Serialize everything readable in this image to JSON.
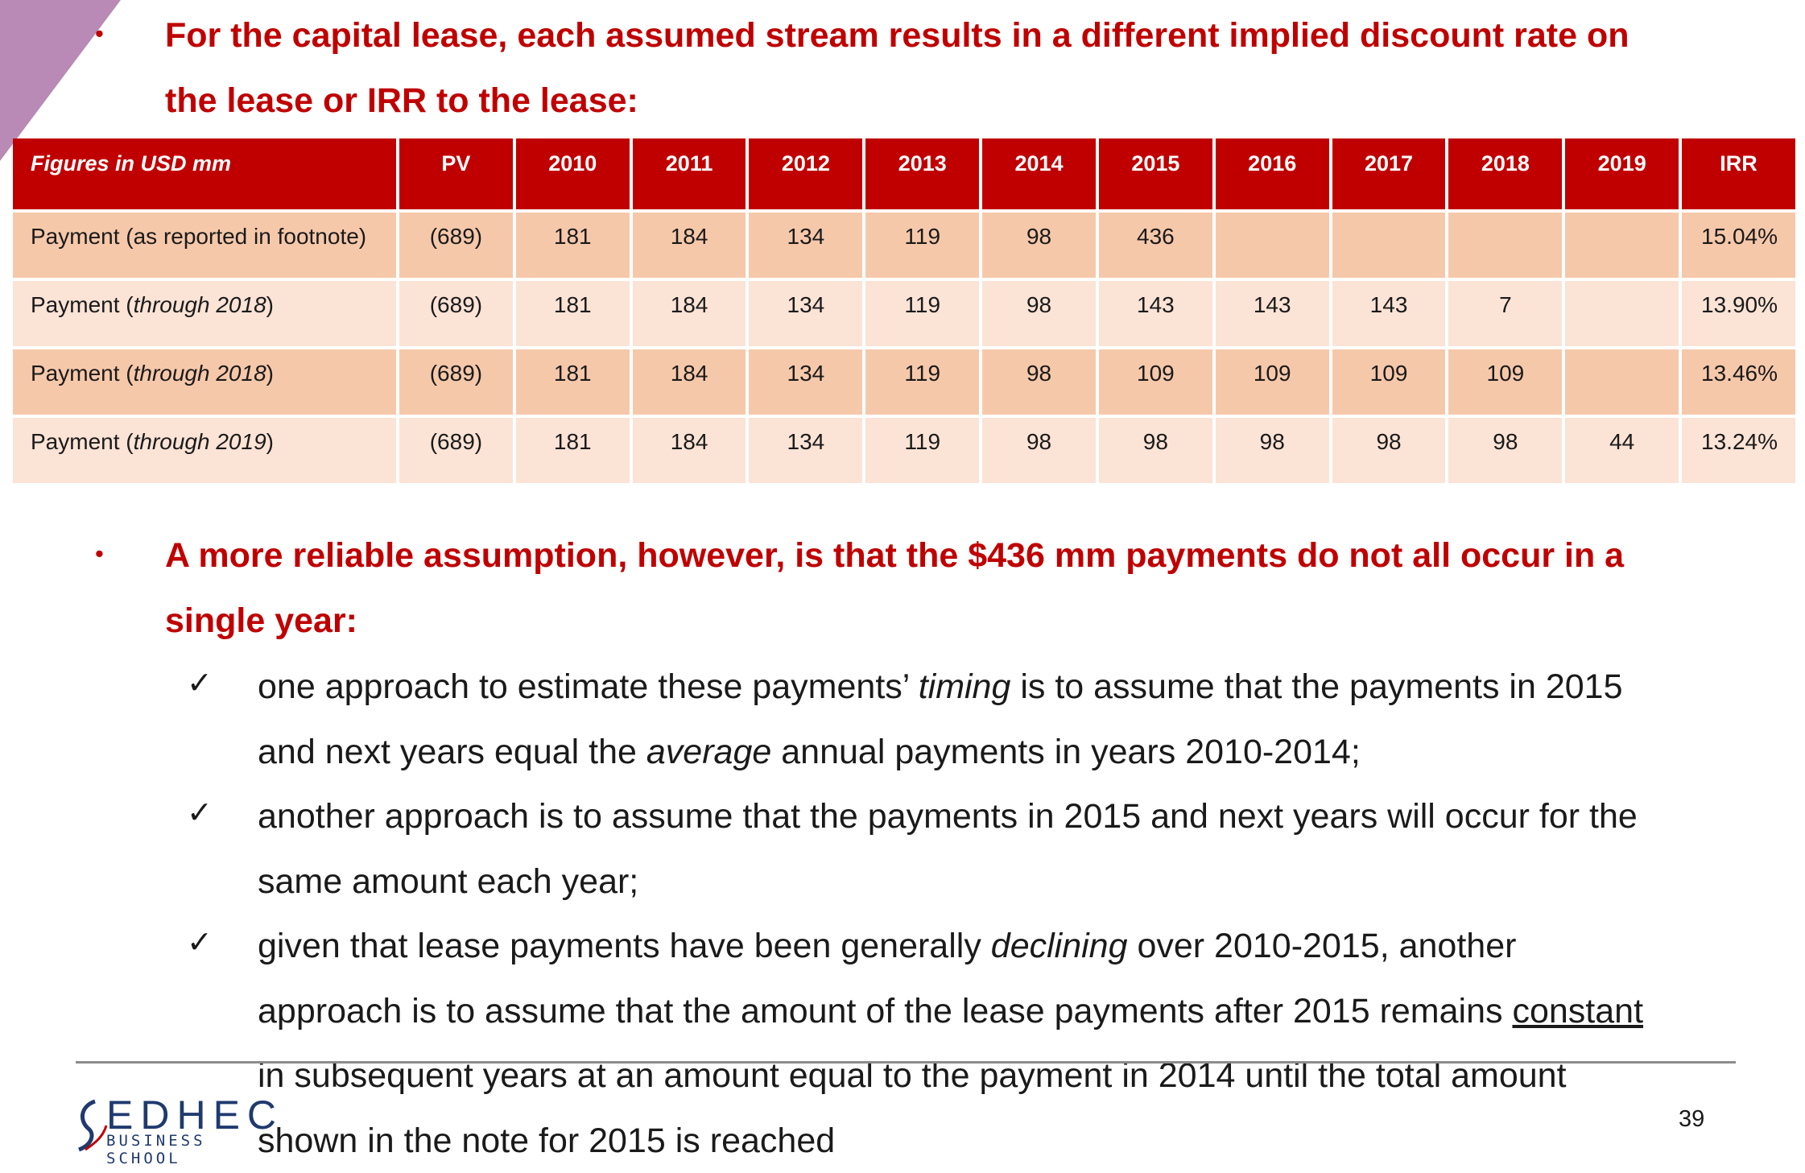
{
  "heading1": {
    "bullet": "•",
    "line1": "For the capital lease, each assumed stream results in a different implied discount rate on",
    "line2": "the lease or IRR to the lease:"
  },
  "table": {
    "headers": [
      "Figures in USD mm",
      "PV",
      "2010",
      "2011",
      "2012",
      "2013",
      "2014",
      "2015",
      "2016",
      "2017",
      "2018",
      "2019",
      "IRR"
    ],
    "rows": [
      {
        "label_prefix": "Payment (as reported in footnote)",
        "label_italic": "",
        "label_suffix": "",
        "cells": [
          "(689)",
          "181",
          "184",
          "134",
          "119",
          "98",
          "436",
          "",
          "",
          "",
          "",
          "15.04%"
        ]
      },
      {
        "label_prefix": "Payment (",
        "label_italic": "through 2018",
        "label_suffix": ")",
        "cells": [
          "(689)",
          "181",
          "184",
          "134",
          "119",
          "98",
          "143",
          "143",
          "143",
          "7",
          "",
          "13.90%"
        ]
      },
      {
        "label_prefix": "Payment (",
        "label_italic": "through 2018",
        "label_suffix": ")",
        "cells": [
          "(689)",
          "181",
          "184",
          "134",
          "119",
          "98",
          "109",
          "109",
          "109",
          "109",
          "",
          "13.46%"
        ]
      },
      {
        "label_prefix": "Payment (",
        "label_italic": "through 2019",
        "label_suffix": ")",
        "cells": [
          "(689)",
          "181",
          "184",
          "134",
          "119",
          "98",
          "98",
          "98",
          "98",
          "98",
          "44",
          "13.24%"
        ]
      }
    ]
  },
  "heading2": {
    "bullet": "•",
    "line1": "A more reliable assumption, however, is that the $436 mm payments do not all occur in a",
    "line2": "single year:"
  },
  "check_symbol": "✓",
  "point1": {
    "l1a": "one approach to estimate these payments’ ",
    "l1b": "timing",
    "l1c": " is to assume that the payments in 2015",
    "l2a": "and next years equal the ",
    "l2b": "average",
    "l2c": " annual payments in years 2010-2014;"
  },
  "point2": {
    "l1": "another approach is to assume that the payments in 2015 and next years will occur for the",
    "l2": "same amount each year;"
  },
  "point3": {
    "l1a": "given that lease payments have been generally ",
    "l1b": "declining",
    "l1c": " over 2010-2015, another",
    "l2a": "approach is to assume that the amount of the lease payments after 2015 remains ",
    "l2b": "constant",
    "l3": "in subsequent years at an amount equal to the payment in 2014 until the total amount",
    "l4": "shown in the note for 2015 is reached"
  },
  "footer": {
    "logo_main": "EDHEC",
    "logo_sub": "BUSINESS SCHOOL",
    "page_number": "39"
  },
  "colors": {
    "accent_red": "#c00000",
    "row_dark": "#f6c8aa",
    "row_light": "#fbe3d6",
    "corner_purple": "#b88ab5",
    "logo_blue": "#1f3a6e"
  }
}
